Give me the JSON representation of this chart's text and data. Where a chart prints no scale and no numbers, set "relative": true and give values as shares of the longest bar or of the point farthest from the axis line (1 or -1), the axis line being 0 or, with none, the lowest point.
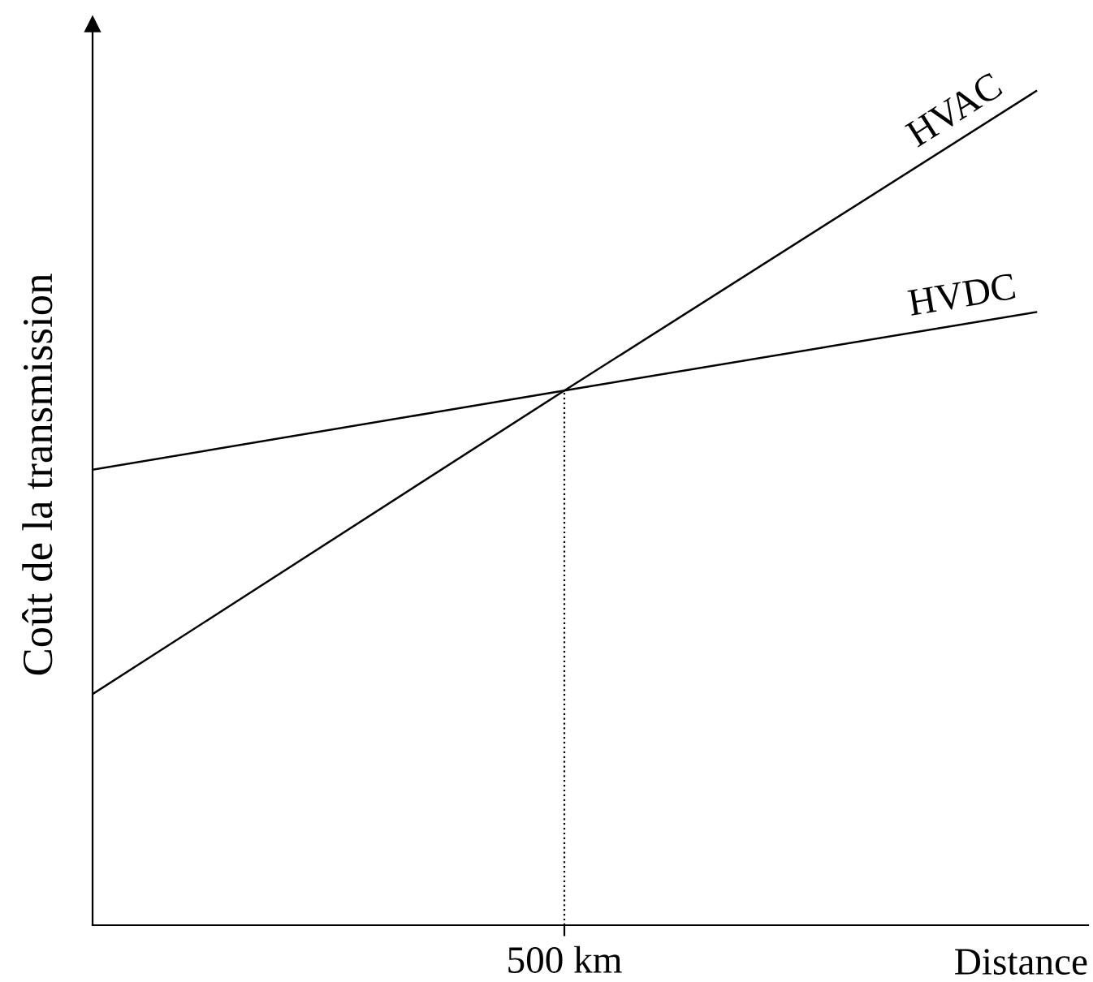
{
  "chart_data": {
    "type": "line",
    "relative": true,
    "xlabel": "Distance",
    "ylabel": "Coût de la transmission",
    "categories": [
      null,
      null,
      null
    ],
    "series": [
      {
        "name": "HVAC",
        "color": "#000000",
        "values": [
          0.277,
          0.641,
          1
        ]
      },
      {
        "name": "HVDC",
        "color": "#000000",
        "values": [
          0.546,
          0.641,
          0.735
        ]
      }
    ],
    "ref_lines": [
      {
        "axis": "x",
        "label": "500 km",
        "line_style": "dotted",
        "color": "#000000"
      }
    ],
    "line_style": "solid",
    "marker": "none",
    "legend": false
  }
}
